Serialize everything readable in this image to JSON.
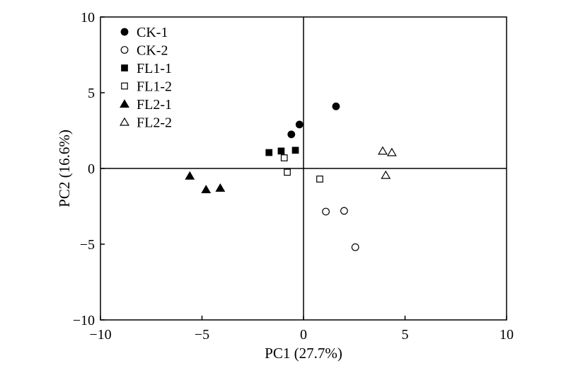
{
  "chart_data": {
    "type": "scatter",
    "xlabel": "PC1 (27.7%)",
    "ylabel": "PC2 (16.6%)",
    "xlim": [
      -10,
      10
    ],
    "ylim": [
      -10,
      10
    ],
    "x_ticks": [
      -10,
      -5,
      0,
      5,
      10
    ],
    "y_ticks": [
      -10,
      -5,
      0,
      5,
      10
    ],
    "x_tick_labels": [
      "−10",
      "−5",
      "0",
      "5",
      "10"
    ],
    "y_tick_labels": [
      "−10",
      "−5",
      "0",
      "5",
      "10"
    ],
    "reference_lines": {
      "x": 0,
      "y": 0
    },
    "grid": false,
    "legend_position": "top-left",
    "series": [
      {
        "name": "CK-1",
        "marker": "circle",
        "filled": true,
        "points": [
          [
            -0.2,
            2.9
          ],
          [
            -0.6,
            2.25
          ],
          [
            1.6,
            4.1
          ]
        ]
      },
      {
        "name": "CK-2",
        "marker": "circle",
        "filled": false,
        "points": [
          [
            1.1,
            -2.85
          ],
          [
            2.0,
            -2.8
          ],
          [
            2.55,
            -5.2
          ]
        ]
      },
      {
        "name": "FL1-1",
        "marker": "square",
        "filled": true,
        "points": [
          [
            -1.7,
            1.05
          ],
          [
            -1.1,
            1.15
          ],
          [
            -0.4,
            1.2
          ]
        ]
      },
      {
        "name": "FL1-2",
        "marker": "square",
        "filled": false,
        "points": [
          [
            -0.95,
            0.7
          ],
          [
            -0.8,
            -0.25
          ],
          [
            0.8,
            -0.7
          ]
        ]
      },
      {
        "name": "FL2-1",
        "marker": "triangle",
        "filled": true,
        "points": [
          [
            -5.6,
            -0.5
          ],
          [
            -4.8,
            -1.4
          ],
          [
            -4.1,
            -1.3
          ]
        ]
      },
      {
        "name": "FL2-2",
        "marker": "triangle",
        "filled": false,
        "points": [
          [
            3.9,
            1.15
          ],
          [
            4.35,
            1.05
          ],
          [
            4.05,
            -0.45
          ]
        ]
      }
    ]
  }
}
